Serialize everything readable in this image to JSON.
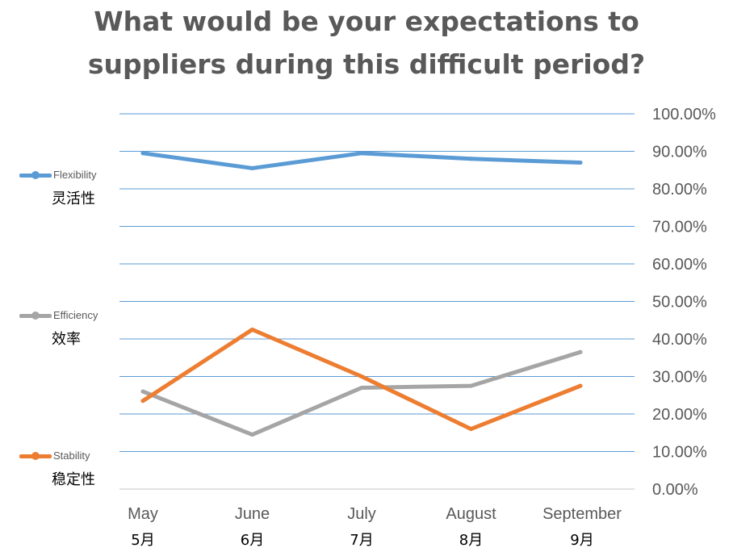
{
  "chart_data": {
    "type": "line",
    "title_lines": [
      "What would be your expectations to",
      "suppliers during this difficult period?"
    ],
    "categories": [
      "May",
      "June",
      "July",
      "August",
      "September"
    ],
    "categories_cn": [
      "5月",
      "6月",
      "7月",
      "8月",
      "9月"
    ],
    "y_ticks": [
      "100.00%",
      "90.00%",
      "80.00%",
      "70.00%",
      "60.00%",
      "50.00%",
      "40.00%",
      "30.00%",
      "20.00%",
      "10.00%",
      "0.00%"
    ],
    "ylim": [
      0,
      100
    ],
    "y_axis_position": "right",
    "grid": true,
    "legend_position": "left",
    "series": [
      {
        "name": "Flexibility",
        "name_cn": "灵活性",
        "color": "#5B9BD5",
        "values": [
          89.5,
          85.5,
          89.5,
          88,
          87
        ]
      },
      {
        "name": "Efficiency",
        "name_cn": "效率",
        "color": "#A5A5A5",
        "values": [
          26,
          14.5,
          27,
          27.5,
          36.5
        ]
      },
      {
        "name": "Stability",
        "name_cn": "稳定性",
        "color": "#ED7D31",
        "values": [
          23.5,
          42.5,
          30,
          16,
          27.5
        ]
      }
    ]
  }
}
